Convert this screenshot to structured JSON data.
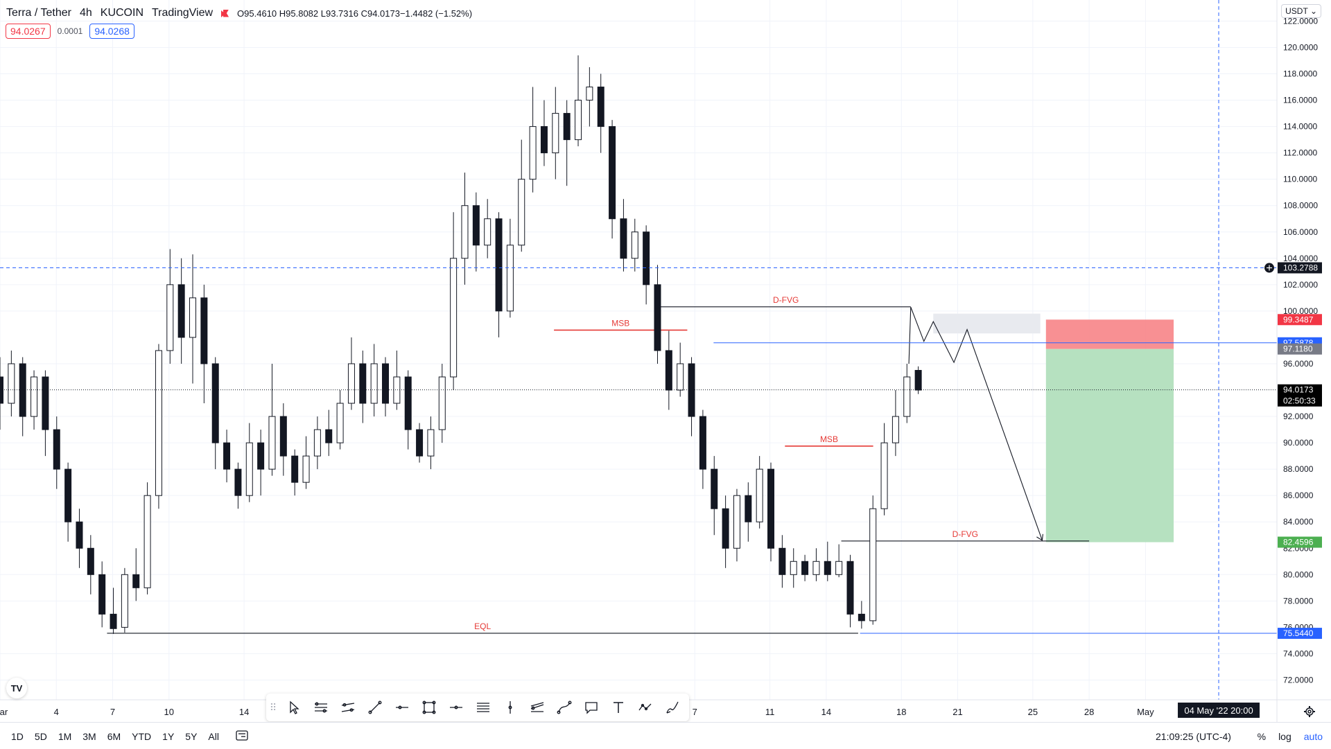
{
  "header": {
    "symbol": "Terra / Tether",
    "interval": "4h",
    "exchange": "KUCOIN",
    "platform": "TradingView",
    "ohlc": "O95.4610 H95.8082 L93.7316 C94.0173",
    "change": "−1.4482 (−1.52%)"
  },
  "quote": {
    "sell": "94.0267",
    "spread": "0.0001",
    "buy": "94.0268"
  },
  "currency_selector": "USDT",
  "bottom_bar": {
    "ranges": [
      "1D",
      "5D",
      "1M",
      "3M",
      "6M",
      "YTD",
      "1Y",
      "5Y",
      "All"
    ],
    "clock": "21:09:25 (UTC-4)",
    "percent": "%",
    "log": "log",
    "auto": "auto"
  },
  "colors": {
    "up": "#131722",
    "down": "#131722",
    "grid": "#f0f3fa",
    "msb": "#e53935",
    "annotation_text": "#e53935",
    "horizontal_ref": "#2962ff",
    "stop_zone": "#f77c80",
    "target_zone": "#b2dfbd",
    "fvg_box": "#e8eaef"
  },
  "icons": [
    "cursor-icon",
    "trend-lines-icon",
    "channel-icon",
    "line-icon",
    "horizontal-line-icon",
    "rectangle-icon",
    "horizontal-ray-icon",
    "fib-icon",
    "vertical-line-icon",
    "pitchfork-icon",
    "curve-icon",
    "callout-icon",
    "text-icon",
    "path-icon",
    "brush-icon"
  ],
  "chart_data": {
    "type": "candlestick",
    "timeframe": "4h",
    "yaxis": {
      "ticks": [
        "122.0000",
        "120.0000",
        "118.0000",
        "116.0000",
        "114.0000",
        "112.0000",
        "110.0000",
        "108.0000",
        "106.0000",
        "104.0000",
        "102.0000",
        "100.0000",
        "96.0000",
        "92.0000",
        "90.0000",
        "88.0000",
        "86.0000",
        "84.0000",
        "80.0000",
        "78.0000",
        "74.0000",
        "72.0000"
      ],
      "range": [
        70.5,
        123.6
      ]
    },
    "xaxis": {
      "ticks": [
        {
          "label": "Mar",
          "t": 0
        },
        {
          "label": "4",
          "t": 3
        },
        {
          "label": "7",
          "t": 6
        },
        {
          "label": "10",
          "t": 9
        },
        {
          "label": "14",
          "t": 13
        },
        {
          "label": "7",
          "t": 37
        },
        {
          "label": "11",
          "t": 41
        },
        {
          "label": "14",
          "t": 44
        },
        {
          "label": "18",
          "t": 48
        },
        {
          "label": "21",
          "t": 51
        },
        {
          "label": "25",
          "t": 55
        },
        {
          "label": "28",
          "t": 58
        },
        {
          "label": "May",
          "t": 61
        }
      ],
      "range": [
        0,
        68
      ],
      "crosshair_label": "04 May '22  20:00",
      "crosshair_t": 64.9
    },
    "price_labels": [
      {
        "value": 103.2788,
        "text": "103.2788",
        "style": "crosshair"
      },
      {
        "value": 99.3487,
        "text": "99.3487",
        "style": "stop"
      },
      {
        "value": 97.5878,
        "text": "97.5878",
        "style": "ref"
      },
      {
        "value": 97.118,
        "text": "97.1180",
        "style": "entry"
      },
      {
        "value": 94.0173,
        "text": "94.0173",
        "sub": "02:50:33",
        "style": "last"
      },
      {
        "value": 82.4596,
        "text": "82.4596",
        "style": "target"
      },
      {
        "value": 75.544,
        "text": "75.5440",
        "style": "ref"
      }
    ],
    "hidden_tick_fragments": [
      {
        "value": 82.0,
        "text": "82.0000"
      },
      {
        "value": 76.0,
        "text": "76.0000"
      }
    ],
    "crosshair_price": 103.2788,
    "last_price": 94.0173,
    "annotations": [
      {
        "type": "segment",
        "label": "MSB",
        "color": "msb",
        "t1": 29.5,
        "t2": 36.6,
        "value": 98.55
      },
      {
        "type": "segment",
        "label": "D-FVG",
        "color": "dark",
        "t1": 35.2,
        "t2": 48.5,
        "value": 100.32
      },
      {
        "type": "segment",
        "label": "MSB",
        "color": "msb",
        "t1": 41.8,
        "t2": 46.5,
        "value": 89.75
      },
      {
        "type": "segment",
        "label": "D-FVG",
        "color": "dark",
        "t1": 44.8,
        "t2": 58.0,
        "value": 82.55
      },
      {
        "type": "segment",
        "label": "EQL",
        "color": "dark",
        "t1": 5.7,
        "t2": 45.7,
        "value": 75.55
      },
      {
        "type": "ray",
        "color": "horizontal_ref",
        "t1": 38.0,
        "value": 97.5878
      },
      {
        "type": "ray",
        "color": "horizontal_ref",
        "t1": 45.8,
        "value": 75.544
      }
    ],
    "fvg_box": {
      "t1": 49.7,
      "t2": 55.4,
      "y1": 99.8,
      "y2": 98.3
    },
    "position": {
      "t1": 55.7,
      "t2": 62.5,
      "entry": 97.118,
      "stop": 99.3487,
      "target": 82.4596
    },
    "projection": [
      [
        48.4,
        96.0
      ],
      [
        48.5,
        100.3
      ],
      [
        49.2,
        97.7
      ],
      [
        49.7,
        99.2
      ],
      [
        50.8,
        96.1
      ],
      [
        51.5,
        98.6
      ],
      [
        55.5,
        82.6
      ]
    ],
    "candles": [
      [
        95,
        93,
        96.5,
        91
      ],
      [
        93,
        96,
        97,
        92
      ],
      [
        96,
        92,
        96.5,
        90.5
      ],
      [
        92,
        95,
        95.5,
        91
      ],
      [
        95,
        91,
        95.5,
        89
      ],
      [
        91,
        88,
        92,
        86.5
      ],
      [
        88,
        84,
        88.5,
        82.5
      ],
      [
        84,
        82,
        85,
        80.5
      ],
      [
        82,
        80,
        83,
        78.5
      ],
      [
        80,
        77,
        81,
        76
      ],
      [
        77,
        75.9,
        79,
        75.5
      ],
      [
        76,
        80,
        80.5,
        75.6
      ],
      [
        80,
        79,
        82,
        78
      ],
      [
        79,
        86,
        87,
        78.5
      ],
      [
        86,
        97,
        97.5,
        85
      ],
      [
        97,
        102,
        104.7,
        96
      ],
      [
        102,
        98,
        104,
        96
      ],
      [
        98,
        101,
        104.3,
        94.5
      ],
      [
        101,
        96,
        102,
        93
      ],
      [
        96,
        90,
        96.5,
        88
      ],
      [
        90,
        88,
        91,
        87
      ],
      [
        88,
        86,
        88.5,
        85
      ],
      [
        86,
        90,
        91.5,
        85.5
      ],
      [
        90,
        88,
        91,
        86
      ],
      [
        88,
        92,
        96,
        87.5
      ],
      [
        92,
        89,
        93,
        87.5
      ],
      [
        89,
        87,
        89.5,
        86
      ],
      [
        87,
        89,
        90.5,
        86.5
      ],
      [
        89,
        91,
        92,
        88
      ],
      [
        91,
        90,
        92.5,
        89
      ],
      [
        90,
        93,
        94,
        89.5
      ],
      [
        93,
        96,
        98,
        92.5
      ],
      [
        96,
        93,
        97,
        91.5
      ],
      [
        93,
        96,
        97.5,
        92
      ],
      [
        96,
        93,
        96.5,
        92
      ],
      [
        93,
        95,
        97,
        92.5
      ],
      [
        95,
        91,
        95.5,
        89.5
      ],
      [
        91,
        89,
        91.5,
        88.5
      ],
      [
        89,
        91,
        92,
        88
      ],
      [
        91,
        95,
        96,
        90
      ],
      [
        95,
        104,
        107.5,
        94
      ],
      [
        104,
        108,
        110.5,
        102
      ],
      [
        108,
        105,
        109,
        103
      ],
      [
        105,
        107,
        108.5,
        104
      ],
      [
        107,
        100,
        107.5,
        98
      ],
      [
        100,
        105,
        107,
        99.5
      ],
      [
        105,
        110,
        113,
        104.5
      ],
      [
        110,
        114,
        117,
        109
      ],
      [
        114,
        112,
        116,
        111
      ],
      [
        112,
        115,
        117,
        110
      ],
      [
        115,
        113,
        116,
        109.5
      ],
      [
        113,
        116,
        119.4,
        112.5
      ],
      [
        116,
        117,
        118.5,
        114
      ],
      [
        117,
        114,
        118,
        112
      ],
      [
        114,
        107,
        114.5,
        105.5
      ],
      [
        107,
        104,
        108.5,
        103
      ],
      [
        104,
        106,
        107,
        103
      ],
      [
        106,
        102,
        106.5,
        100.5
      ],
      [
        102,
        97,
        103.5,
        96
      ],
      [
        97,
        94,
        98.5,
        92.5
      ],
      [
        94,
        96,
        97.6,
        93.5
      ],
      [
        96,
        92,
        96.5,
        90.5
      ],
      [
        92,
        88,
        92.5,
        86.5
      ],
      [
        88,
        85,
        89,
        83
      ],
      [
        85,
        82,
        86,
        80.5
      ],
      [
        82,
        86,
        86.5,
        81
      ],
      [
        86,
        84,
        87,
        82.5
      ],
      [
        84,
        88,
        89,
        83.5
      ],
      [
        88,
        82,
        88.5,
        81
      ],
      [
        82,
        80,
        83,
        79
      ],
      [
        80,
        81,
        82,
        79
      ],
      [
        81,
        80,
        81.5,
        79.5
      ],
      [
        80,
        81,
        82,
        79.5
      ],
      [
        81,
        80,
        82.5,
        79.5
      ],
      [
        80,
        81,
        82.3,
        79.8
      ],
      [
        81,
        77,
        81.5,
        76
      ],
      [
        77,
        76.5,
        78,
        75.9
      ],
      [
        76.5,
        85,
        86,
        76.2
      ],
      [
        85,
        90,
        91.5,
        84.5
      ],
      [
        90,
        92,
        94,
        89
      ],
      [
        92,
        95,
        96,
        91.5
      ],
      [
        95.5,
        94.0,
        95.8,
        93.7
      ]
    ]
  }
}
